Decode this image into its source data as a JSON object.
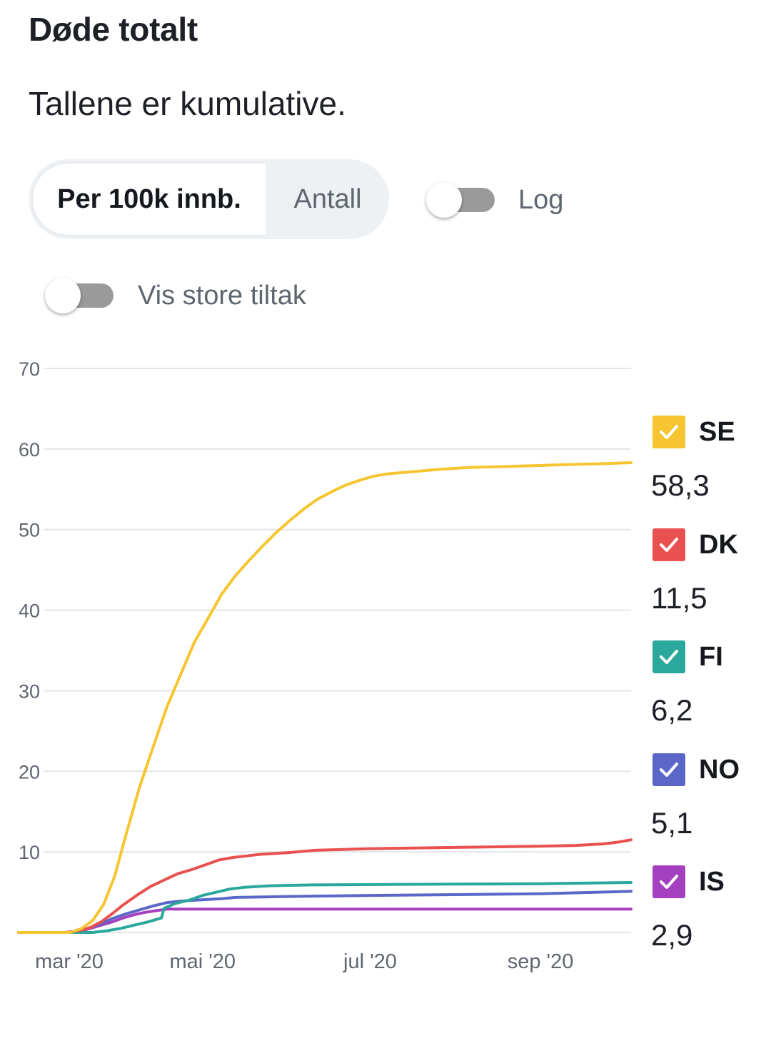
{
  "header": {
    "title": "Døde totalt",
    "subtitle": "Tallene er kumulative."
  },
  "controls": {
    "segment_active": "Per 100k innb.",
    "segment_inactive": "Antall",
    "log_label": "Log",
    "log_on": false,
    "measures_label": "Vis store tiltak",
    "measures_on": false
  },
  "chart_data": {
    "type": "line",
    "title": "Døde totalt",
    "ylim": [
      0,
      70
    ],
    "y_ticks": [
      "10",
      "20",
      "30",
      "40",
      "50",
      "60",
      "70"
    ],
    "x_tick_labels": [
      "mar '20",
      "mai '20",
      "jul '20",
      "sep '20"
    ],
    "x_tick_dates": [
      "2020-03-01",
      "2020-05-01",
      "2020-07-01",
      "2020-09-01"
    ],
    "x_range": [
      "2020-02-24",
      "2020-10-04"
    ],
    "grid": true,
    "legend_position": "right",
    "series": [
      {
        "name": "SE",
        "color": "#f7c531",
        "final_label": "58,3",
        "points": [
          [
            "2020-02-24",
            0
          ],
          [
            "2020-03-14",
            0
          ],
          [
            "2020-03-18",
            0.5
          ],
          [
            "2020-03-22",
            1.5
          ],
          [
            "2020-03-26",
            3.5
          ],
          [
            "2020-03-30",
            7
          ],
          [
            "2020-04-03",
            12
          ],
          [
            "2020-04-08",
            18
          ],
          [
            "2020-04-13",
            23
          ],
          [
            "2020-04-18",
            28
          ],
          [
            "2020-04-23",
            32
          ],
          [
            "2020-04-28",
            36
          ],
          [
            "2020-05-03",
            39
          ],
          [
            "2020-05-08",
            42
          ],
          [
            "2020-05-13",
            44.3
          ],
          [
            "2020-05-18",
            46.2
          ],
          [
            "2020-05-23",
            48
          ],
          [
            "2020-05-28",
            49.7
          ],
          [
            "2020-06-02",
            51.2
          ],
          [
            "2020-06-07",
            52.6
          ],
          [
            "2020-06-12",
            53.8
          ],
          [
            "2020-06-17",
            54.7
          ],
          [
            "2020-06-22",
            55.5
          ],
          [
            "2020-06-27",
            56.1
          ],
          [
            "2020-07-02",
            56.6
          ],
          [
            "2020-07-07",
            56.9
          ],
          [
            "2020-07-17",
            57.2
          ],
          [
            "2020-07-27",
            57.5
          ],
          [
            "2020-08-06",
            57.7
          ],
          [
            "2020-08-16",
            57.8
          ],
          [
            "2020-08-26",
            57.9
          ],
          [
            "2020-09-05",
            58
          ],
          [
            "2020-09-15",
            58.1
          ],
          [
            "2020-09-25",
            58.2
          ],
          [
            "2020-10-04",
            58.3
          ]
        ]
      },
      {
        "name": "DK",
        "color": "#e8514f",
        "final_label": "11,5",
        "points": [
          [
            "2020-02-24",
            0
          ],
          [
            "2020-03-12",
            0
          ],
          [
            "2020-03-17",
            0.2
          ],
          [
            "2020-03-21",
            0.6
          ],
          [
            "2020-03-25",
            1.3
          ],
          [
            "2020-03-29",
            2.3
          ],
          [
            "2020-04-02",
            3.4
          ],
          [
            "2020-04-07",
            4.6
          ],
          [
            "2020-04-12",
            5.7
          ],
          [
            "2020-04-17",
            6.5
          ],
          [
            "2020-04-22",
            7.3
          ],
          [
            "2020-04-27",
            7.8
          ],
          [
            "2020-05-02",
            8.4
          ],
          [
            "2020-05-07",
            9
          ],
          [
            "2020-05-12",
            9.3
          ],
          [
            "2020-05-17",
            9.5
          ],
          [
            "2020-05-22",
            9.7
          ],
          [
            "2020-06-01",
            9.9
          ],
          [
            "2020-06-11",
            10.2
          ],
          [
            "2020-06-21",
            10.3
          ],
          [
            "2020-07-01",
            10.4
          ],
          [
            "2020-07-21",
            10.5
          ],
          [
            "2020-08-10",
            10.6
          ],
          [
            "2020-08-30",
            10.7
          ],
          [
            "2020-09-14",
            10.8
          ],
          [
            "2020-09-24",
            11
          ],
          [
            "2020-09-29",
            11.2
          ],
          [
            "2020-10-04",
            11.5
          ]
        ]
      },
      {
        "name": "FI",
        "color": "#2aa89b",
        "final_label": "6,2",
        "points": [
          [
            "2020-02-24",
            0
          ],
          [
            "2020-03-22",
            0
          ],
          [
            "2020-03-27",
            0.2
          ],
          [
            "2020-04-01",
            0.5
          ],
          [
            "2020-04-06",
            0.9
          ],
          [
            "2020-04-11",
            1.3
          ],
          [
            "2020-04-16",
            1.8
          ],
          [
            "2020-04-17",
            3
          ],
          [
            "2020-04-21",
            3.6
          ],
          [
            "2020-04-26",
            4
          ],
          [
            "2020-05-01",
            4.6
          ],
          [
            "2020-05-06",
            5
          ],
          [
            "2020-05-11",
            5.4
          ],
          [
            "2020-05-16",
            5.6
          ],
          [
            "2020-05-26",
            5.8
          ],
          [
            "2020-06-10",
            5.9
          ],
          [
            "2020-07-01",
            5.95
          ],
          [
            "2020-08-01",
            6
          ],
          [
            "2020-09-01",
            6.05
          ],
          [
            "2020-10-04",
            6.2
          ]
        ]
      },
      {
        "name": "NO",
        "color": "#5b67c8",
        "final_label": "5,1",
        "points": [
          [
            "2020-02-24",
            0
          ],
          [
            "2020-03-12",
            0
          ],
          [
            "2020-03-17",
            0.2
          ],
          [
            "2020-03-21",
            0.6
          ],
          [
            "2020-03-25",
            1.1
          ],
          [
            "2020-03-29",
            1.7
          ],
          [
            "2020-04-03",
            2.3
          ],
          [
            "2020-04-08",
            2.8
          ],
          [
            "2020-04-13",
            3.3
          ],
          [
            "2020-04-18",
            3.7
          ],
          [
            "2020-04-23",
            3.9
          ],
          [
            "2020-04-28",
            4
          ],
          [
            "2020-05-03",
            4.1
          ],
          [
            "2020-05-08",
            4.2
          ],
          [
            "2020-05-13",
            4.35
          ],
          [
            "2020-05-23",
            4.4
          ],
          [
            "2020-06-07",
            4.5
          ],
          [
            "2020-07-01",
            4.6
          ],
          [
            "2020-08-01",
            4.7
          ],
          [
            "2020-09-01",
            4.8
          ],
          [
            "2020-10-04",
            5.1
          ]
        ]
      },
      {
        "name": "IS",
        "color": "#a43fbf",
        "final_label": "2,9",
        "points": [
          [
            "2020-02-24",
            0
          ],
          [
            "2020-03-14",
            0
          ],
          [
            "2020-03-19",
            0.3
          ],
          [
            "2020-03-24",
            0.8
          ],
          [
            "2020-03-29",
            1.3
          ],
          [
            "2020-04-02",
            1.8
          ],
          [
            "2020-04-06",
            2.2
          ],
          [
            "2020-04-10",
            2.5
          ],
          [
            "2020-04-14",
            2.7
          ],
          [
            "2020-04-18",
            2.9
          ],
          [
            "2020-10-04",
            2.9
          ]
        ]
      }
    ]
  }
}
